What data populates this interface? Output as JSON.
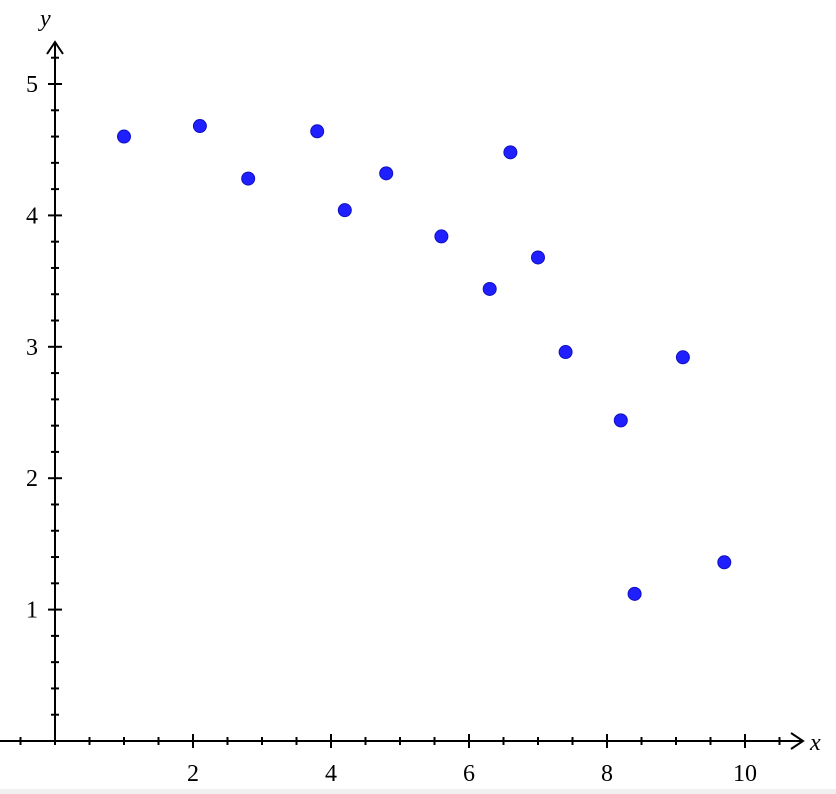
{
  "chart_data": {
    "type": "scatter",
    "title": "",
    "xlabel": "x",
    "ylabel": "y",
    "xlim": [
      -0.8,
      10.8
    ],
    "ylim": [
      0,
      5.3
    ],
    "x_ticks": [
      2,
      4,
      6,
      8,
      10
    ],
    "y_ticks": [
      1,
      2,
      3,
      4,
      5
    ],
    "x_minor_step": 0.5,
    "y_minor_step": 0.2,
    "grid": false,
    "marker_color": "#1f1fff",
    "points": [
      {
        "x": 1.0,
        "y": 4.6
      },
      {
        "x": 2.1,
        "y": 4.68
      },
      {
        "x": 2.8,
        "y": 4.28
      },
      {
        "x": 3.8,
        "y": 4.64
      },
      {
        "x": 4.2,
        "y": 4.04
      },
      {
        "x": 4.8,
        "y": 4.32
      },
      {
        "x": 5.6,
        "y": 3.84
      },
      {
        "x": 6.3,
        "y": 3.44
      },
      {
        "x": 6.6,
        "y": 4.48
      },
      {
        "x": 7.0,
        "y": 3.68
      },
      {
        "x": 7.4,
        "y": 2.96
      },
      {
        "x": 8.2,
        "y": 2.44
      },
      {
        "x": 8.4,
        "y": 1.12
      },
      {
        "x": 9.1,
        "y": 2.92
      },
      {
        "x": 9.7,
        "y": 1.36
      }
    ]
  }
}
